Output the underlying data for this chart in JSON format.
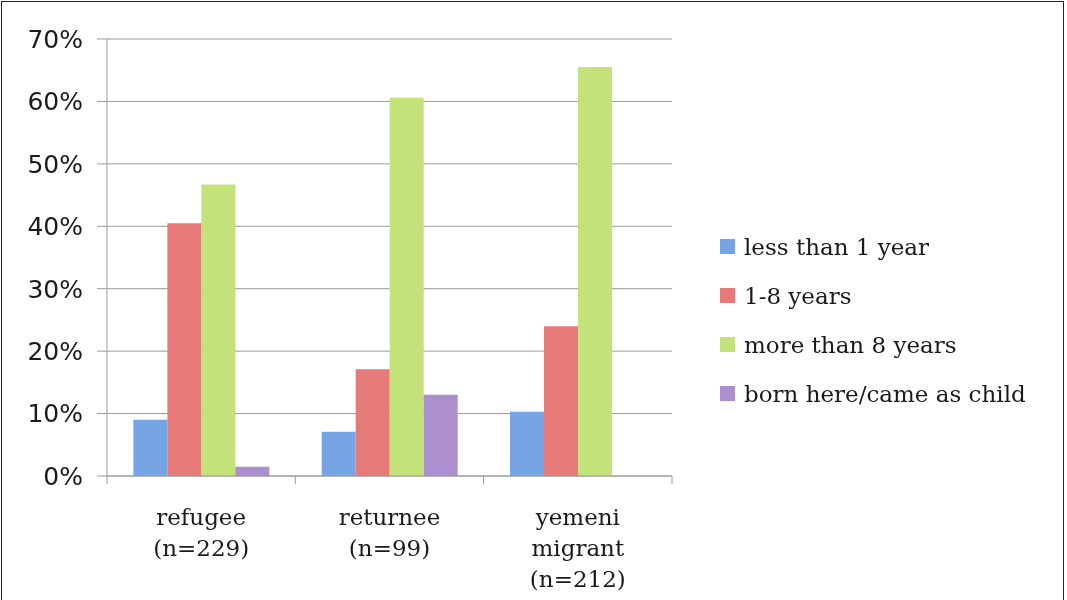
{
  "chart_data": {
    "type": "bar",
    "categories": [
      "refugee (n=229)",
      "returnee (n=99)",
      "yemeni migrant (n=212)"
    ],
    "series": [
      {
        "name": "less than 1 year",
        "color": "#77a4e5",
        "values": [
          9.0,
          7.1,
          10.3
        ]
      },
      {
        "name": "1-8 years",
        "color": "#e67a78",
        "values": [
          40.5,
          17.1,
          24.0
        ]
      },
      {
        "name": "more than 8 years",
        "color": "#c3e27a",
        "values": [
          46.7,
          60.6,
          65.5
        ]
      },
      {
        "name": "born here/came as child",
        "color": "#ab8fcf",
        "values": [
          1.5,
          13.0,
          null
        ]
      }
    ],
    "ylim": [
      0,
      70
    ],
    "yticks": [
      {
        "value": 0,
        "label": "0%"
      },
      {
        "value": 10,
        "label": "10%"
      },
      {
        "value": 20,
        "label": "20%"
      },
      {
        "value": 30,
        "label": "30%"
      },
      {
        "value": 40,
        "label": "40%"
      },
      {
        "value": 50,
        "label": "50%"
      },
      {
        "value": 60,
        "label": "60%"
      },
      {
        "value": 70,
        "label": "70%"
      }
    ],
    "grid": "y",
    "legend": "right"
  }
}
